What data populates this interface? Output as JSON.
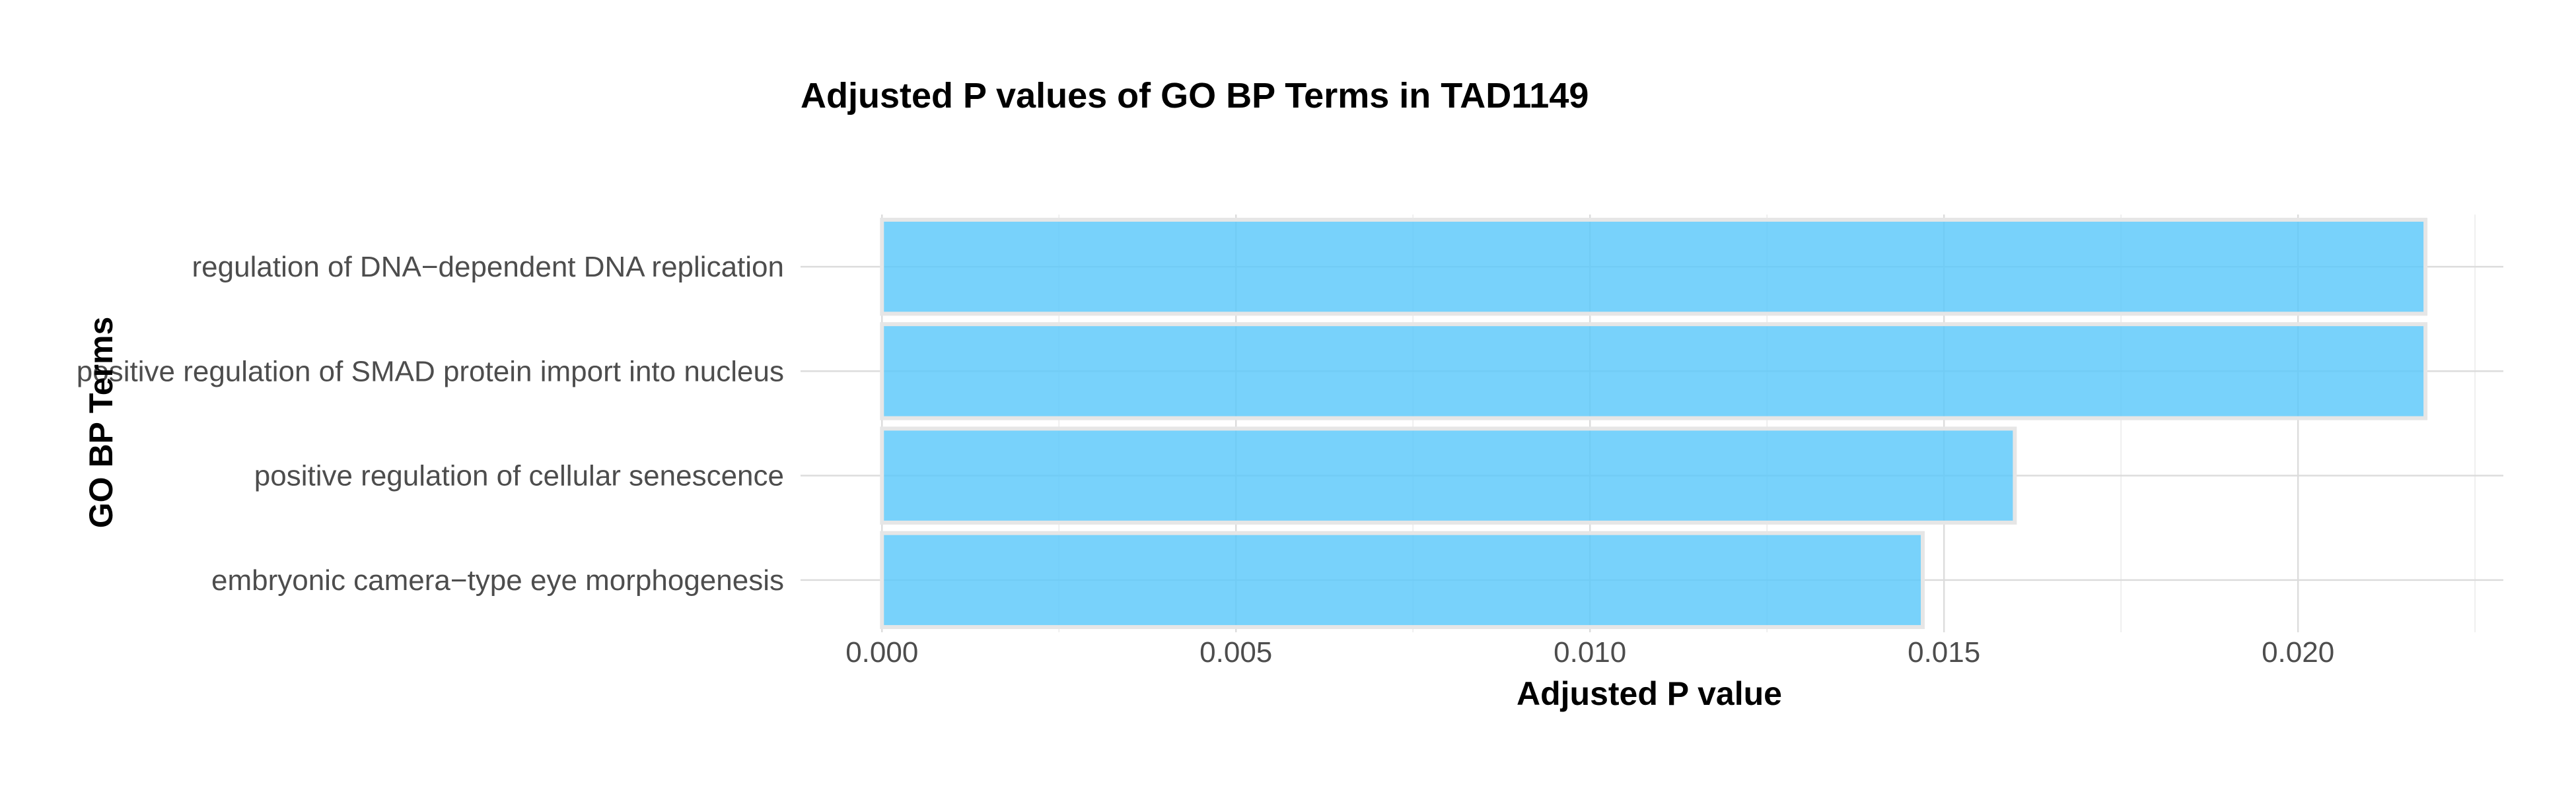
{
  "chart_data": {
    "type": "bar",
    "orientation": "horizontal",
    "title": "Adjusted P values of GO BP Terms in TAD1149",
    "xlabel": "Adjusted P value",
    "ylabel": "GO BP Terms",
    "categories": [
      "regulation of DNA−dependent DNA replication",
      "positive regulation of SMAD protein import into nucleus",
      "positive regulation of cellular senescence",
      "embryonic camera−type eye morphogenesis"
    ],
    "values": [
      0.0218,
      0.0218,
      0.016,
      0.0147
    ],
    "xticks": [
      0.0,
      0.005,
      0.01,
      0.015,
      0.02
    ],
    "xtick_labels": [
      "0.000",
      "0.005",
      "0.010",
      "0.015",
      "0.020"
    ],
    "xlim": [
      -0.00115,
      0.0229
    ],
    "grid": true,
    "legend": "none",
    "colors": {
      "bar_fill": "#5ac8fa",
      "bar_outline": "#e6e6e6",
      "grid": "#dcdcdc"
    }
  }
}
